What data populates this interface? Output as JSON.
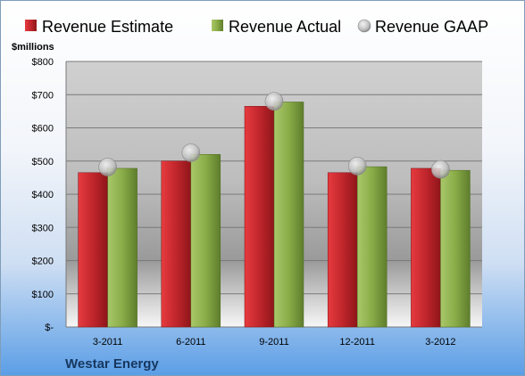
{
  "chart_data": {
    "type": "bar",
    "categories": [
      "3-2011",
      "6-2011",
      "9-2011",
      "12-2011",
      "3-2012"
    ],
    "series": [
      {
        "name": "Revenue Estimate",
        "type": "bar",
        "color": "#c0262c",
        "values": [
          465,
          500,
          665,
          465,
          478
        ]
      },
      {
        "name": "Revenue Actual",
        "type": "bar",
        "color": "#8aac48",
        "values": [
          478,
          520,
          678,
          483,
          472
        ]
      },
      {
        "name": "Revenue GAAP",
        "type": "marker",
        "color": "#c8c8c8",
        "values": [
          482,
          525,
          680,
          485,
          475
        ]
      }
    ],
    "ylabel": "$millions",
    "ylim": [
      0,
      800
    ],
    "yticks": [
      0,
      100,
      200,
      300,
      400,
      500,
      600,
      700,
      800
    ],
    "ytick_labels": [
      "$-",
      "$100",
      "$200",
      "$300",
      "$400",
      "$500",
      "$600",
      "$700",
      "$800"
    ],
    "grid": true,
    "legend": "top"
  },
  "company": "Westar Energy",
  "colors": {
    "plot_bg_top": "#d0d0d0",
    "plot_bg_bottom": "#f7f7f7"
  }
}
